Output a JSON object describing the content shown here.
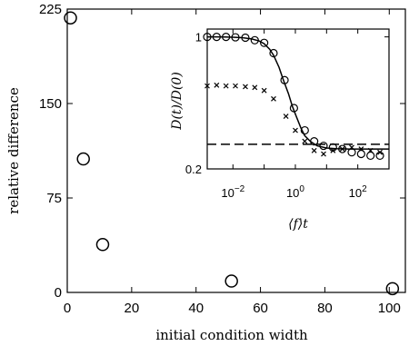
{
  "chart_data": [
    {
      "type": "scatter",
      "xlabel": "initial condition width",
      "ylabel": "relative difference",
      "xlim": [
        0,
        105
      ],
      "ylim": [
        0,
        225
      ],
      "x_ticks": [
        "0",
        "20",
        "40",
        "60",
        "80",
        "100"
      ],
      "y_ticks": [
        "0",
        "75",
        "150",
        "225"
      ],
      "marker": "circle",
      "x": [
        1,
        5,
        11,
        51,
        101
      ],
      "y": [
        218,
        106,
        38,
        9,
        3
      ]
    },
    {
      "type": "line",
      "xlabel": "⟨f⟩t",
      "ylabel": "D(t)/D(0)",
      "xscale": "log",
      "xlim": [
        0.0015,
        1000
      ],
      "ylim": [
        0.2,
        1.1
      ],
      "x_ticks": [
        "10^-2",
        "10^0",
        "10^2"
      ],
      "y_ticks": [
        "0.2",
        "1"
      ],
      "series": [
        {
          "style": "solid",
          "x": [
            0.0015,
            0.003,
            0.006,
            0.01,
            0.02,
            0.04,
            0.07,
            0.1,
            0.15,
            0.2,
            0.3,
            0.4,
            0.6,
            0.8,
            1,
            1.5,
            2,
            3,
            5,
            10,
            20,
            50,
            100,
            300,
            1000
          ],
          "y": [
            1,
            1,
            0.998,
            0.996,
            0.99,
            0.975,
            0.95,
            0.92,
            0.86,
            0.8,
            0.69,
            0.6,
            0.5,
            0.43,
            0.39,
            0.33,
            0.3,
            0.28,
            0.265,
            0.258,
            0.256,
            0.255,
            0.255,
            0.255,
            0.255
          ]
        },
        {
          "style": "circle",
          "x": [
            0.0015,
            0.003,
            0.006,
            0.012,
            0.025,
            0.05,
            0.1,
            0.2,
            0.45,
            0.9,
            2,
            4,
            8,
            16,
            32,
            64,
            128,
            256,
            512
          ],
          "y": [
            1,
            1,
            1,
            0.995,
            0.99,
            0.96,
            0.93,
            0.82,
            0.59,
            0.42,
            0.32,
            0.28,
            0.265,
            0.26,
            0.255,
            0.245,
            0.24,
            0.235,
            0.235
          ]
        },
        {
          "style": "x",
          "x": [
            0.0015,
            0.003,
            0.006,
            0.012,
            0.025,
            0.05,
            0.1,
            0.2,
            0.5,
            1,
            2,
            4,
            8,
            16,
            32,
            64,
            128,
            256,
            512
          ],
          "y": [
            0.55,
            0.555,
            0.55,
            0.55,
            0.545,
            0.54,
            0.52,
            0.47,
            0.38,
            0.32,
            0.28,
            0.25,
            0.24,
            0.25,
            0.255,
            0.26,
            0.255,
            0.25,
            0.245
          ]
        },
        {
          "style": "dashed",
          "x": [
            0.0015,
            1000
          ],
          "y": [
            0.27,
            0.27
          ]
        }
      ]
    }
  ]
}
